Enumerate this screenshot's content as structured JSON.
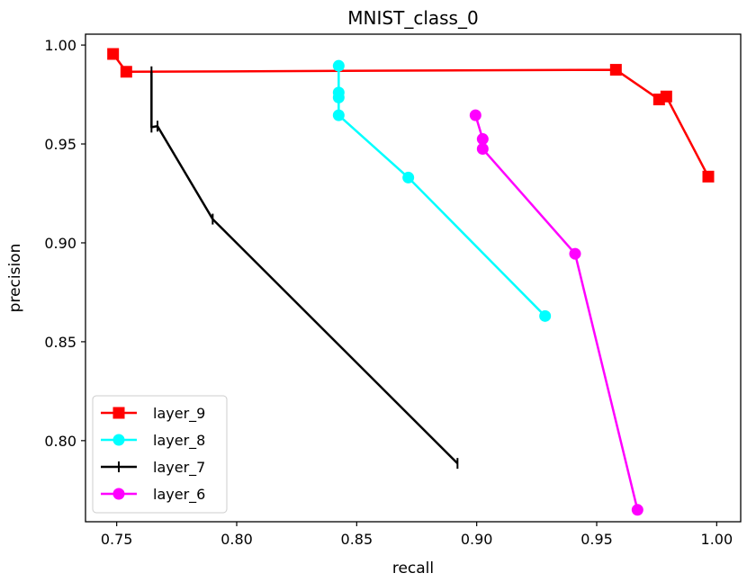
{
  "chart_data": {
    "type": "line",
    "title": "MNIST_class_0",
    "xlabel": "recall",
    "ylabel": "precision",
    "xlim": [
      0.737,
      1.01
    ],
    "ylim": [
      0.759,
      1.0055
    ],
    "xticks": [
      0.75,
      0.8,
      0.85,
      0.9,
      0.95,
      1.0
    ],
    "xtick_labels": [
      "0.75",
      "0.80",
      "0.85",
      "0.90",
      "0.95",
      "1.00"
    ],
    "yticks": [
      0.8,
      0.85,
      0.9,
      0.95,
      1.0
    ],
    "ytick_labels": [
      "0.80",
      "0.85",
      "0.90",
      "0.95",
      "1.00"
    ],
    "grid": false,
    "legend_position": "lower-left",
    "series": [
      {
        "name": "layer_9",
        "color": "#ff0000",
        "marker": "square",
        "x": [
          0.7485,
          0.754,
          0.958,
          0.976,
          0.979,
          0.9965
        ],
        "y": [
          0.9955,
          0.9865,
          0.9875,
          0.9725,
          0.974,
          0.9335
        ]
      },
      {
        "name": "layer_8",
        "color": "#00ffff",
        "marker": "circle",
        "x": [
          0.8425,
          0.8425,
          0.8425,
          0.8425,
          0.8715,
          0.9285
        ],
        "y": [
          0.9895,
          0.976,
          0.9735,
          0.9645,
          0.933,
          0.863
        ]
      },
      {
        "name": "layer_7",
        "color": "#000000",
        "marker": "vline",
        "x": [
          0.7645,
          0.7645,
          0.767,
          0.79,
          0.892
        ],
        "y": [
          0.9865,
          0.9585,
          0.959,
          0.912,
          0.7885
        ]
      },
      {
        "name": "layer_6",
        "color": "#ff00ff",
        "marker": "circle",
        "x": [
          0.8995,
          0.9025,
          0.9025,
          0.941,
          0.967
        ],
        "y": [
          0.9645,
          0.9525,
          0.9475,
          0.8945,
          0.765
        ]
      }
    ]
  }
}
